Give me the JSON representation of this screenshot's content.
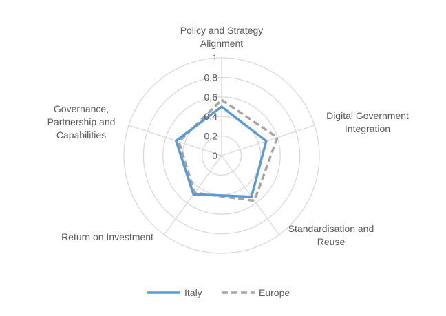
{
  "chart_data": {
    "type": "radar",
    "title": "",
    "axes": [
      {
        "name": "Policy and Strategy Alignment",
        "lines": [
          "Policy and Strategy",
          "Alignment"
        ]
      },
      {
        "name": "Digital Government Integration",
        "lines": [
          "Digital Government",
          "Integration"
        ]
      },
      {
        "name": "Standardisation and Reuse",
        "lines": [
          "Standardisation and",
          "Reuse"
        ]
      },
      {
        "name": "Return on Investment",
        "lines": [
          "Return on Investment"
        ]
      },
      {
        "name": "Governance, Partnership and Capabilities",
        "lines": [
          "Governance,",
          "Partnership and",
          "Capabilities"
        ]
      }
    ],
    "ticks": [
      "0",
      "0,2",
      "0,4",
      "0,6",
      "0,8",
      "1"
    ],
    "tick_values": [
      0,
      0.2,
      0.4,
      0.6,
      0.8,
      1
    ],
    "range": [
      0,
      1
    ],
    "grid": true,
    "grid_shape": "circle",
    "legend_position": "bottom",
    "series": [
      {
        "name": "Italy",
        "values": [
          0.5,
          0.48,
          0.52,
          0.49,
          0.49
        ],
        "color": "#5b9bd5",
        "style": "solid"
      },
      {
        "name": "Europe",
        "values": [
          0.57,
          0.6,
          0.57,
          0.47,
          0.46
        ],
        "color": "#a5a5a5",
        "style": "dashed"
      }
    ]
  }
}
